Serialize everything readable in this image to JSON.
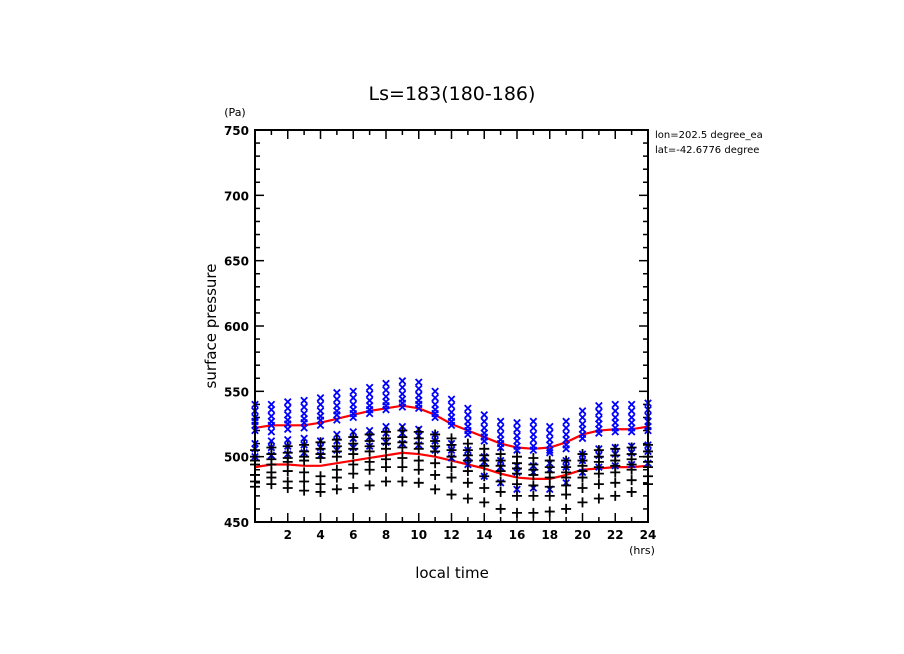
{
  "chart_data": {
    "type": "scatter",
    "title": "Ls=183(180-186)",
    "xlabel": "local time",
    "xunit": "(hrs)",
    "ylabel": "surface pressure",
    "yunit": "(Pa)",
    "xlim": [
      0,
      24
    ],
    "ylim": [
      450,
      750
    ],
    "xticks": [
      2,
      4,
      6,
      8,
      10,
      12,
      14,
      16,
      18,
      20,
      22,
      24
    ],
    "yticks": [
      450,
      500,
      550,
      600,
      650,
      700,
      750
    ],
    "annotations": [
      "lon=202.5 degree_ea",
      "lat=-42.6776 degree"
    ],
    "colors": {
      "series_x": "#0000ff",
      "series_plus": "#000000",
      "mean_line": "#ff0000"
    },
    "series": [
      {
        "name": "x-markers",
        "marker": "x",
        "x": [
          0,
          1,
          2,
          3,
          4,
          5,
          6,
          7,
          8,
          9,
          10,
          11,
          12,
          13,
          14,
          15,
          16,
          17,
          18,
          19,
          20,
          21,
          22,
          23,
          24
        ],
        "values": [
          [
            540,
            535,
            530,
            527,
            524,
            520,
            510,
            506,
            500
          ],
          [
            540,
            536,
            531,
            527,
            524,
            519,
            512,
            507,
            501
          ],
          [
            542,
            537,
            532,
            528,
            525,
            521,
            513,
            508,
            502
          ],
          [
            543,
            538,
            533,
            529,
            526,
            522,
            514,
            509,
            503
          ],
          [
            545,
            540,
            535,
            531,
            528,
            524,
            512,
            507,
            501
          ],
          [
            549,
            544,
            539,
            535,
            532,
            528,
            517,
            512,
            505
          ],
          [
            550,
            545,
            540,
            536,
            533,
            530,
            519,
            514,
            507
          ],
          [
            553,
            548,
            543,
            539,
            536,
            533,
            520,
            515,
            508
          ],
          [
            556,
            551,
            546,
            542,
            539,
            536,
            523,
            518,
            511
          ],
          [
            558,
            553,
            548,
            544,
            541,
            538,
            523,
            518,
            510
          ],
          [
            557,
            552,
            547,
            543,
            540,
            537,
            521,
            516,
            509
          ],
          [
            550,
            545,
            540,
            536,
            533,
            530,
            517,
            512,
            505
          ],
          [
            544,
            539,
            534,
            530,
            527,
            524,
            510,
            505,
            499
          ],
          [
            537,
            532,
            527,
            523,
            520,
            517,
            505,
            500,
            494
          ],
          [
            532,
            527,
            522,
            518,
            515,
            512,
            500,
            496,
            485
          ],
          [
            527,
            522,
            517,
            513,
            510,
            507,
            497,
            492,
            480
          ],
          [
            526,
            521,
            516,
            512,
            508,
            505,
            493,
            488,
            475
          ],
          [
            527,
            522,
            517,
            513,
            508,
            505,
            493,
            488,
            476
          ],
          [
            523,
            518,
            513,
            509,
            505,
            503,
            495,
            490,
            475
          ],
          [
            527,
            522,
            517,
            513,
            509,
            506,
            497,
            492,
            480
          ],
          [
            535,
            530,
            525,
            521,
            517,
            514,
            502,
            497,
            488
          ],
          [
            539,
            534,
            529,
            525,
            521,
            518,
            506,
            501,
            492
          ],
          [
            540,
            535,
            530,
            526,
            522,
            519,
            507,
            502,
            493
          ],
          [
            540,
            535,
            530,
            526,
            522,
            519,
            508,
            503,
            494
          ],
          [
            541,
            536,
            531,
            527,
            523,
            520,
            509,
            504,
            495
          ]
        ]
      },
      {
        "name": "plus-markers",
        "marker": "+",
        "x": [
          0,
          1,
          2,
          3,
          4,
          5,
          6,
          7,
          8,
          9,
          10,
          11,
          12,
          13,
          14,
          15,
          16,
          17,
          18,
          19,
          20,
          21,
          22,
          23,
          24
        ],
        "values": [
          [
            505,
            500,
            497,
            494,
            486,
            481,
            477
          ],
          [
            507,
            502,
            498,
            494,
            488,
            484,
            479
          ],
          [
            508,
            503,
            499,
            496,
            489,
            481,
            476
          ],
          [
            509,
            504,
            500,
            497,
            488,
            481,
            474
          ],
          [
            511,
            506,
            502,
            499,
            485,
            479,
            473
          ],
          [
            513,
            508,
            504,
            500,
            490,
            484,
            475
          ],
          [
            515,
            510,
            506,
            502,
            494,
            487,
            476
          ],
          [
            517,
            512,
            508,
            504,
            496,
            490,
            478
          ],
          [
            519,
            514,
            510,
            506,
            498,
            492,
            481
          ],
          [
            520,
            515,
            511,
            507,
            499,
            492,
            481
          ],
          [
            519,
            514,
            510,
            506,
            497,
            490,
            480
          ],
          [
            517,
            512,
            508,
            504,
            495,
            486,
            475
          ],
          [
            514,
            509,
            505,
            500,
            492,
            484,
            471
          ],
          [
            510,
            505,
            501,
            497,
            489,
            480,
            468
          ],
          [
            506,
            501,
            497,
            493,
            485,
            476,
            465
          ],
          [
            502,
            497,
            493,
            489,
            481,
            473,
            460
          ],
          [
            500,
            495,
            491,
            487,
            479,
            470,
            457
          ],
          [
            499,
            494,
            490,
            486,
            478,
            470,
            457
          ],
          [
            497,
            492,
            488,
            484,
            477,
            470,
            458
          ],
          [
            497,
            492,
            488,
            484,
            478,
            471,
            460
          ],
          [
            502,
            497,
            493,
            489,
            484,
            476,
            465
          ],
          [
            505,
            500,
            496,
            492,
            487,
            479,
            468
          ],
          [
            506,
            501,
            497,
            493,
            488,
            480,
            470
          ],
          [
            507,
            502,
            498,
            494,
            490,
            482,
            473
          ],
          [
            509,
            504,
            500,
            496,
            492,
            485,
            479
          ]
        ]
      },
      {
        "name": "mean-upper",
        "marker": "line",
        "x": [
          0,
          1,
          2,
          3,
          4,
          5,
          6,
          7,
          8,
          9,
          10,
          11,
          12,
          13,
          14,
          15,
          16,
          17,
          18,
          19,
          20,
          21,
          22,
          23,
          24
        ],
        "values": [
          522,
          524,
          524,
          524,
          526,
          529,
          532,
          535,
          537,
          539,
          537,
          532,
          525,
          520,
          515,
          510,
          507,
          506,
          507,
          511,
          517,
          520,
          521,
          521,
          523
        ]
      },
      {
        "name": "mean-lower",
        "marker": "line",
        "x": [
          0,
          1,
          2,
          3,
          4,
          5,
          6,
          7,
          8,
          9,
          10,
          11,
          12,
          13,
          14,
          15,
          16,
          17,
          18,
          19,
          20,
          21,
          22,
          23,
          24
        ],
        "values": [
          492,
          494,
          494,
          493,
          493,
          495,
          497,
          499,
          501,
          503,
          502,
          500,
          497,
          494,
          491,
          487,
          484,
          483,
          483,
          486,
          490,
          491,
          492,
          492,
          493
        ]
      }
    ]
  }
}
